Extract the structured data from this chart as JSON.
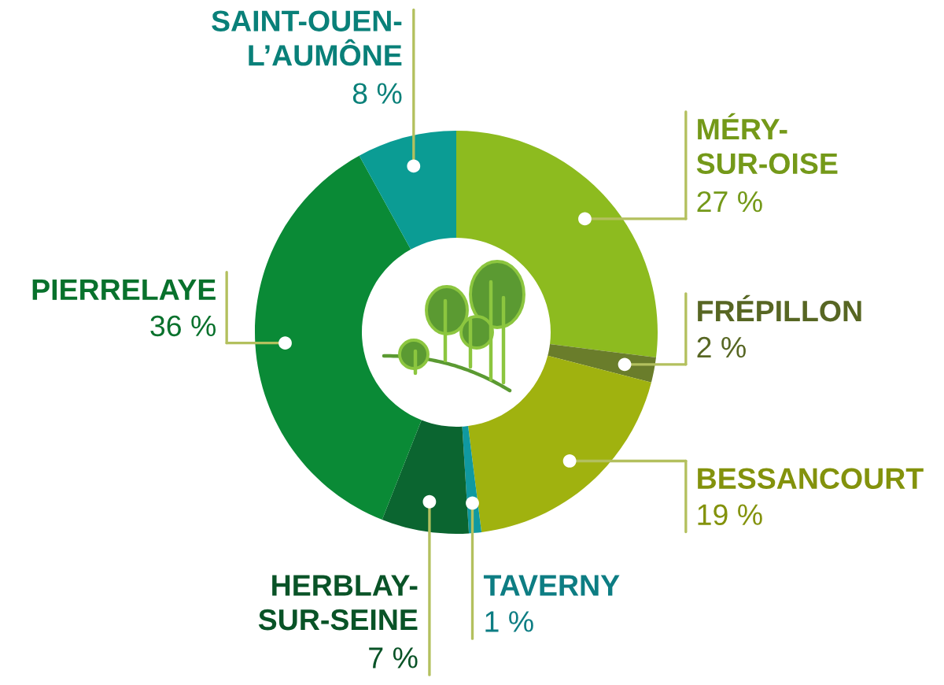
{
  "chart_data": {
    "type": "donut",
    "categories": [
      "MÉRY-\nSUR-OISE",
      "FRÉPILLON",
      "BESSANCOURT",
      "TAVERNY",
      "HERBLAY-\nSUR-SEINE",
      "PIERRELAYE",
      "SAINT-OUEN-\nL’AUMÔNE"
    ],
    "values": [
      27,
      2,
      19,
      1,
      7,
      36,
      8
    ],
    "colors": [
      "#8dbb1f",
      "#6a7d2b",
      "#a0b20f",
      "#1099a0",
      "#0b6530",
      "#0a8a36",
      "#0b9c94"
    ],
    "value_labels": [
      "27 %",
      "2 %",
      "19 %",
      "1 %",
      "7 %",
      "36 %",
      "8 %"
    ]
  }
}
